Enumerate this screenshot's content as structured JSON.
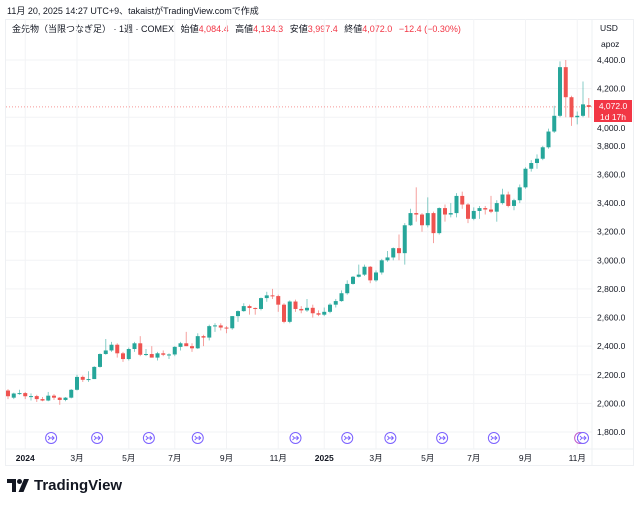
{
  "caption": "11月 20, 2025 14:27 UTC+9、takaistがTradingView.comで作成",
  "legend": {
    "symbol": "金先物（当限つなぎ足）",
    "interval": "· 1週 · COMEX",
    "open_label": "始値",
    "open": "4,084.4",
    "high_label": "高値",
    "high": "4,134.3",
    "low_label": "安値",
    "low": "3,997.4",
    "close_label": "終値",
    "close": "4,072.0",
    "change": "−12.4 (−0.30%)"
  },
  "currency": "USD",
  "unit": "apoz",
  "last_price_tag": {
    "price": "4,072.0",
    "countdown": "1d 17h"
  },
  "brand": "TradingView",
  "colors": {
    "up": "#26a69a",
    "down": "#ef5350",
    "event": "#7b61ff",
    "grid": "#f2f3f5"
  },
  "chart_data": {
    "type": "candlestick",
    "interval": "1W",
    "ylim": [
      1700,
      4500
    ],
    "price_ticks": [
      "1,800.0",
      "2,000.0",
      "2,200.0",
      "2,400.0",
      "2,600.0",
      "2,800.0",
      "3,000.0",
      "3,200.0",
      "3,400.0",
      "3,600.0",
      "3,800.0",
      "4,000.0",
      "4,200.0",
      "4,400.0"
    ],
    "price_tick_values": [
      1800,
      2000,
      2200,
      2400,
      2600,
      2800,
      3000,
      3200,
      3400,
      3600,
      3800,
      4000,
      4200,
      4400
    ],
    "time_labels": [
      {
        "label": "2024",
        "week": 3,
        "year": true
      },
      {
        "label": "3月",
        "week": 12
      },
      {
        "label": "5月",
        "week": 21
      },
      {
        "label": "7月",
        "week": 29
      },
      {
        "label": "9月",
        "week": 38
      },
      {
        "label": "11月",
        "week": 47
      },
      {
        "label": "2025",
        "week": 55,
        "year": true
      },
      {
        "label": "3月",
        "week": 64
      },
      {
        "label": "5月",
        "week": 73
      },
      {
        "label": "7月",
        "week": 81
      },
      {
        "label": "9月",
        "week": 90
      },
      {
        "label": "11月",
        "week": 99
      }
    ],
    "event_weeks": [
      7.5,
      15.5,
      24.5,
      33,
      50,
      59,
      66.5,
      75.5,
      84.5,
      99.5,
      100
    ],
    "ohlc": [
      [
        2090,
        2100,
        2030,
        2050
      ],
      [
        2040,
        2075,
        2030,
        2069
      ],
      [
        2069,
        2095,
        2060,
        2072
      ],
      [
        2072,
        2080,
        2030,
        2050
      ],
      [
        2050,
        2070,
        2020,
        2051
      ],
      [
        2051,
        2060,
        2010,
        2030
      ],
      [
        2030,
        2045,
        2015,
        2020
      ],
      [
        2020,
        2080,
        2015,
        2054
      ],
      [
        2054,
        2065,
        2025,
        2040
      ],
      [
        2040,
        2045,
        1990,
        2024
      ],
      [
        2024,
        2045,
        2015,
        2040
      ],
      [
        2040,
        2100,
        2035,
        2095
      ],
      [
        2095,
        2200,
        2090,
        2185
      ],
      [
        2185,
        2195,
        2150,
        2165
      ],
      [
        2165,
        2225,
        2150,
        2170
      ],
      [
        2170,
        2260,
        2170,
        2255
      ],
      [
        2255,
        2350,
        2250,
        2345
      ],
      [
        2345,
        2450,
        2340,
        2370
      ],
      [
        2370,
        2430,
        2360,
        2410
      ],
      [
        2410,
        2420,
        2320,
        2350
      ],
      [
        2350,
        2360,
        2290,
        2310
      ],
      [
        2310,
        2390,
        2300,
        2380
      ],
      [
        2380,
        2430,
        2360,
        2420
      ],
      [
        2420,
        2470,
        2330,
        2340
      ],
      [
        2340,
        2380,
        2330,
        2345
      ],
      [
        2345,
        2400,
        2320,
        2320
      ],
      [
        2320,
        2360,
        2300,
        2350
      ],
      [
        2350,
        2370,
        2330,
        2340
      ],
      [
        2340,
        2350,
        2310,
        2342
      ],
      [
        2342,
        2400,
        2330,
        2395
      ],
      [
        2395,
        2430,
        2370,
        2420
      ],
      [
        2420,
        2500,
        2400,
        2400
      ],
      [
        2400,
        2420,
        2360,
        2385
      ],
      [
        2385,
        2490,
        2380,
        2470
      ],
      [
        2470,
        2480,
        2400,
        2460
      ],
      [
        2460,
        2550,
        2440,
        2540
      ],
      [
        2540,
        2560,
        2500,
        2545
      ],
      [
        2545,
        2560,
        2510,
        2530
      ],
      [
        2530,
        2540,
        2490,
        2525
      ],
      [
        2525,
        2610,
        2515,
        2610
      ],
      [
        2610,
        2650,
        2570,
        2645
      ],
      [
        2645,
        2700,
        2640,
        2680
      ],
      [
        2680,
        2690,
        2620,
        2667
      ],
      [
        2667,
        2670,
        2620,
        2660
      ],
      [
        2660,
        2740,
        2650,
        2736
      ],
      [
        2736,
        2780,
        2710,
        2755
      ],
      [
        2755,
        2800,
        2730,
        2750
      ],
      [
        2750,
        2760,
        2640,
        2690
      ],
      [
        2690,
        2700,
        2560,
        2570
      ],
      [
        2570,
        2720,
        2560,
        2712
      ],
      [
        2712,
        2725,
        2640,
        2660
      ],
      [
        2660,
        2680,
        2630,
        2650
      ],
      [
        2650,
        2730,
        2640,
        2668
      ],
      [
        2668,
        2690,
        2600,
        2630
      ],
      [
        2630,
        2650,
        2610,
        2620
      ],
      [
        2620,
        2670,
        2610,
        2640
      ],
      [
        2640,
        2700,
        2630,
        2690
      ],
      [
        2690,
        2730,
        2670,
        2715
      ],
      [
        2715,
        2790,
        2710,
        2770
      ],
      [
        2770,
        2860,
        2760,
        2835
      ],
      [
        2835,
        2890,
        2830,
        2885
      ],
      [
        2885,
        2970,
        2880,
        2900
      ],
      [
        2900,
        2970,
        2890,
        2955
      ],
      [
        2955,
        2960,
        2840,
        2860
      ],
      [
        2860,
        2930,
        2850,
        2915
      ],
      [
        2915,
        3010,
        2900,
        3000
      ],
      [
        3000,
        3065,
        2990,
        3020
      ],
      [
        3020,
        3090,
        3000,
        3085
      ],
      [
        3085,
        3180,
        3000,
        3050
      ],
      [
        3050,
        3260,
        2970,
        3245
      ],
      [
        3245,
        3360,
        3240,
        3330
      ],
      [
        3330,
        3510,
        3270,
        3320
      ],
      [
        3320,
        3330,
        3200,
        3245
      ],
      [
        3245,
        3440,
        3230,
        3330
      ],
      [
        3330,
        3340,
        3120,
        3190
      ],
      [
        3190,
        3370,
        3180,
        3365
      ],
      [
        3365,
        3390,
        3270,
        3320
      ],
      [
        3320,
        3400,
        3300,
        3330
      ],
      [
        3330,
        3470,
        3300,
        3450
      ],
      [
        3450,
        3480,
        3360,
        3390
      ],
      [
        3390,
        3400,
        3260,
        3290
      ],
      [
        3290,
        3370,
        3280,
        3345
      ],
      [
        3345,
        3380,
        3290,
        3365
      ],
      [
        3365,
        3380,
        3320,
        3355
      ],
      [
        3355,
        3450,
        3330,
        3340
      ],
      [
        3340,
        3420,
        3270,
        3400
      ],
      [
        3400,
        3500,
        3390,
        3460
      ],
      [
        3460,
        3480,
        3370,
        3380
      ],
      [
        3380,
        3430,
        3350,
        3420
      ],
      [
        3420,
        3530,
        3400,
        3510
      ],
      [
        3510,
        3650,
        3500,
        3640
      ],
      [
        3640,
        3700,
        3620,
        3680
      ],
      [
        3680,
        3740,
        3640,
        3710
      ],
      [
        3710,
        3800,
        3700,
        3790
      ],
      [
        3790,
        3920,
        3780,
        3900
      ],
      [
        3900,
        4080,
        3890,
        4010
      ],
      [
        4010,
        4390,
        4000,
        4350
      ],
      [
        4350,
        4400,
        4000,
        4140
      ],
      [
        4140,
        4150,
        3940,
        4000
      ],
      [
        4000,
        4040,
        3950,
        4010
      ],
      [
        4010,
        4250,
        4000,
        4090
      ],
      [
        4084.4,
        4134.3,
        3997.4,
        4072.0
      ]
    ]
  }
}
